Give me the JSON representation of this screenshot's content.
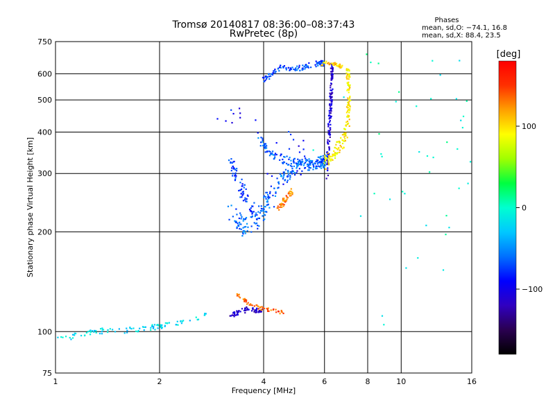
{
  "chart_data": {
    "type": "scatter",
    "title": "Tromsø 20140817 08:36:00–08:37:43",
    "subtitle": "RwPretec (8p)",
    "xlabel": "Frequency [MHz]",
    "ylabel": "Stationary phase Virtual Height [km]",
    "xscale": "log",
    "yscale": "log",
    "xlim": [
      1,
      16
    ],
    "ylim": [
      75,
      750
    ],
    "xticks": [
      1,
      2,
      4,
      6,
      8,
      10,
      16
    ],
    "yticks": [
      75,
      100,
      200,
      300,
      400,
      500,
      600,
      750
    ],
    "grid": true,
    "info": {
      "heading": "Phases",
      "line1": "mean, sd,O: −74.1, 16.8",
      "line2": "mean, sd,X:  88.4, 23.5"
    },
    "colorbar": {
      "label": "[deg]",
      "range": [
        -180,
        180
      ],
      "ticks": [
        100,
        0,
        -100
      ],
      "colormap": [
        "#000000",
        "#2a0050",
        "#3000c0",
        "#0000ff",
        "#0070ff",
        "#00c8ff",
        "#00ffd0",
        "#00ff40",
        "#a0ff00",
        "#ffff00",
        "#ffa000",
        "#ff3000",
        "#ff0000"
      ]
    },
    "series": [
      {
        "curve": [
          [
            1.0,
            97
          ],
          [
            1.1,
            96
          ],
          [
            1.2,
            98
          ],
          [
            1.3,
            100
          ],
          [
            1.45,
            101
          ],
          [
            1.6,
            101
          ],
          [
            1.75,
            102
          ],
          [
            1.9,
            103
          ],
          [
            2.0,
            104
          ],
          [
            2.2,
            106
          ],
          [
            2.4,
            108
          ],
          [
            2.6,
            111
          ],
          [
            2.75,
            113
          ]
        ],
        "spread": [
          0.01,
          2
        ],
        "count": 100,
        "phase": -20
      },
      {
        "curve": [
          [
            3.2,
            112
          ],
          [
            3.3,
            113
          ],
          [
            3.45,
            115
          ],
          [
            3.6,
            117
          ],
          [
            3.8,
            116
          ],
          [
            3.95,
            115
          ]
        ],
        "spread": [
          0.02,
          2
        ],
        "count": 60,
        "phase": -115
      },
      {
        "curve": [
          [
            3.35,
            130
          ],
          [
            3.6,
            122
          ],
          [
            3.9,
            118
          ],
          [
            4.2,
            116
          ],
          [
            4.6,
            114
          ]
        ],
        "spread": [
          0.01,
          1.5
        ],
        "count": 55,
        "phase": 140
      },
      {
        "curve": [
          [
            3.2,
            230
          ],
          [
            3.4,
            215
          ],
          [
            3.6,
            205
          ],
          [
            3.8,
            215
          ],
          [
            4.0,
            235
          ],
          [
            4.2,
            260
          ],
          [
            4.5,
            285
          ],
          [
            4.9,
            310
          ],
          [
            5.3,
            320
          ],
          [
            5.8,
            322
          ],
          [
            6.1,
            330
          ]
        ],
        "spread": [
          0.08,
          14
        ],
        "count": 220,
        "phase": -60
      },
      {
        "curve": [
          [
            3.2,
            330
          ],
          [
            3.3,
            300
          ],
          [
            3.45,
            270
          ],
          [
            3.6,
            250
          ],
          [
            3.75,
            235
          ]
        ],
        "spread": [
          0.04,
          15
        ],
        "count": 70,
        "phase": -75
      },
      {
        "curve": [
          [
            3.9,
            380
          ],
          [
            4.1,
            350
          ],
          [
            4.4,
            335
          ],
          [
            4.8,
            325
          ],
          [
            5.2,
            320
          ],
          [
            5.6,
            318
          ],
          [
            6.0,
            325
          ]
        ],
        "spread": [
          0.05,
          10
        ],
        "count": 120,
        "phase": -65
      },
      {
        "curve": [
          [
            4.0,
            570
          ],
          [
            4.2,
            600
          ],
          [
            4.5,
            630
          ],
          [
            4.8,
            620
          ],
          [
            5.2,
            625
          ],
          [
            5.5,
            640
          ],
          [
            5.8,
            645
          ],
          [
            6.0,
            645
          ]
        ],
        "spread": [
          0.05,
          12
        ],
        "count": 110,
        "phase": -70
      },
      {
        "curve": [
          [
            6.1,
            300
          ],
          [
            6.15,
            360
          ],
          [
            6.2,
            420
          ],
          [
            6.25,
            480
          ],
          [
            6.28,
            540
          ],
          [
            6.3,
            600
          ],
          [
            6.3,
            630
          ]
        ],
        "spread": [
          0.05,
          15
        ],
        "count": 140,
        "phase": -110
      },
      {
        "curve": [
          [
            6.0,
            320
          ],
          [
            6.4,
            350
          ],
          [
            6.8,
            375
          ],
          [
            7.0,
            420
          ],
          [
            7.05,
            480
          ],
          [
            7.05,
            560
          ],
          [
            7.0,
            630
          ]
        ],
        "spread": [
          0.08,
          15
        ],
        "count": 160,
        "phase": 95
      },
      {
        "curve": [
          [
            5.9,
            640
          ],
          [
            6.1,
            650
          ],
          [
            6.3,
            645
          ],
          [
            6.5,
            640
          ],
          [
            6.7,
            630
          ]
        ],
        "spread": [
          0.06,
          8
        ],
        "count": 40,
        "phase": 110
      },
      {
        "curve": [
          [
            4.4,
            235
          ],
          [
            4.55,
            245
          ],
          [
            4.65,
            255
          ],
          [
            4.75,
            262
          ],
          [
            4.85,
            265
          ]
        ],
        "spread": [
          0.04,
          6
        ],
        "count": 45,
        "phase": 130
      },
      {
        "curve": [
          [
            4.3,
            200
          ],
          [
            4.6,
            400
          ],
          [
            5.2,
            300
          ],
          [
            3.2,
            450
          ],
          [
            3.5,
            460
          ]
        ],
        "spread": [
          0.35,
          30
        ],
        "count": 30,
        "phase": -90
      },
      {
        "curve": [
          [
            8.9,
            80
          ],
          [
            10.5,
            300
          ],
          [
            12,
            500
          ],
          [
            15,
            150
          ],
          [
            9.8,
            600
          ]
        ],
        "spread": [
          3.5,
          280
        ],
        "count": 55,
        "phase": 0
      }
    ]
  }
}
